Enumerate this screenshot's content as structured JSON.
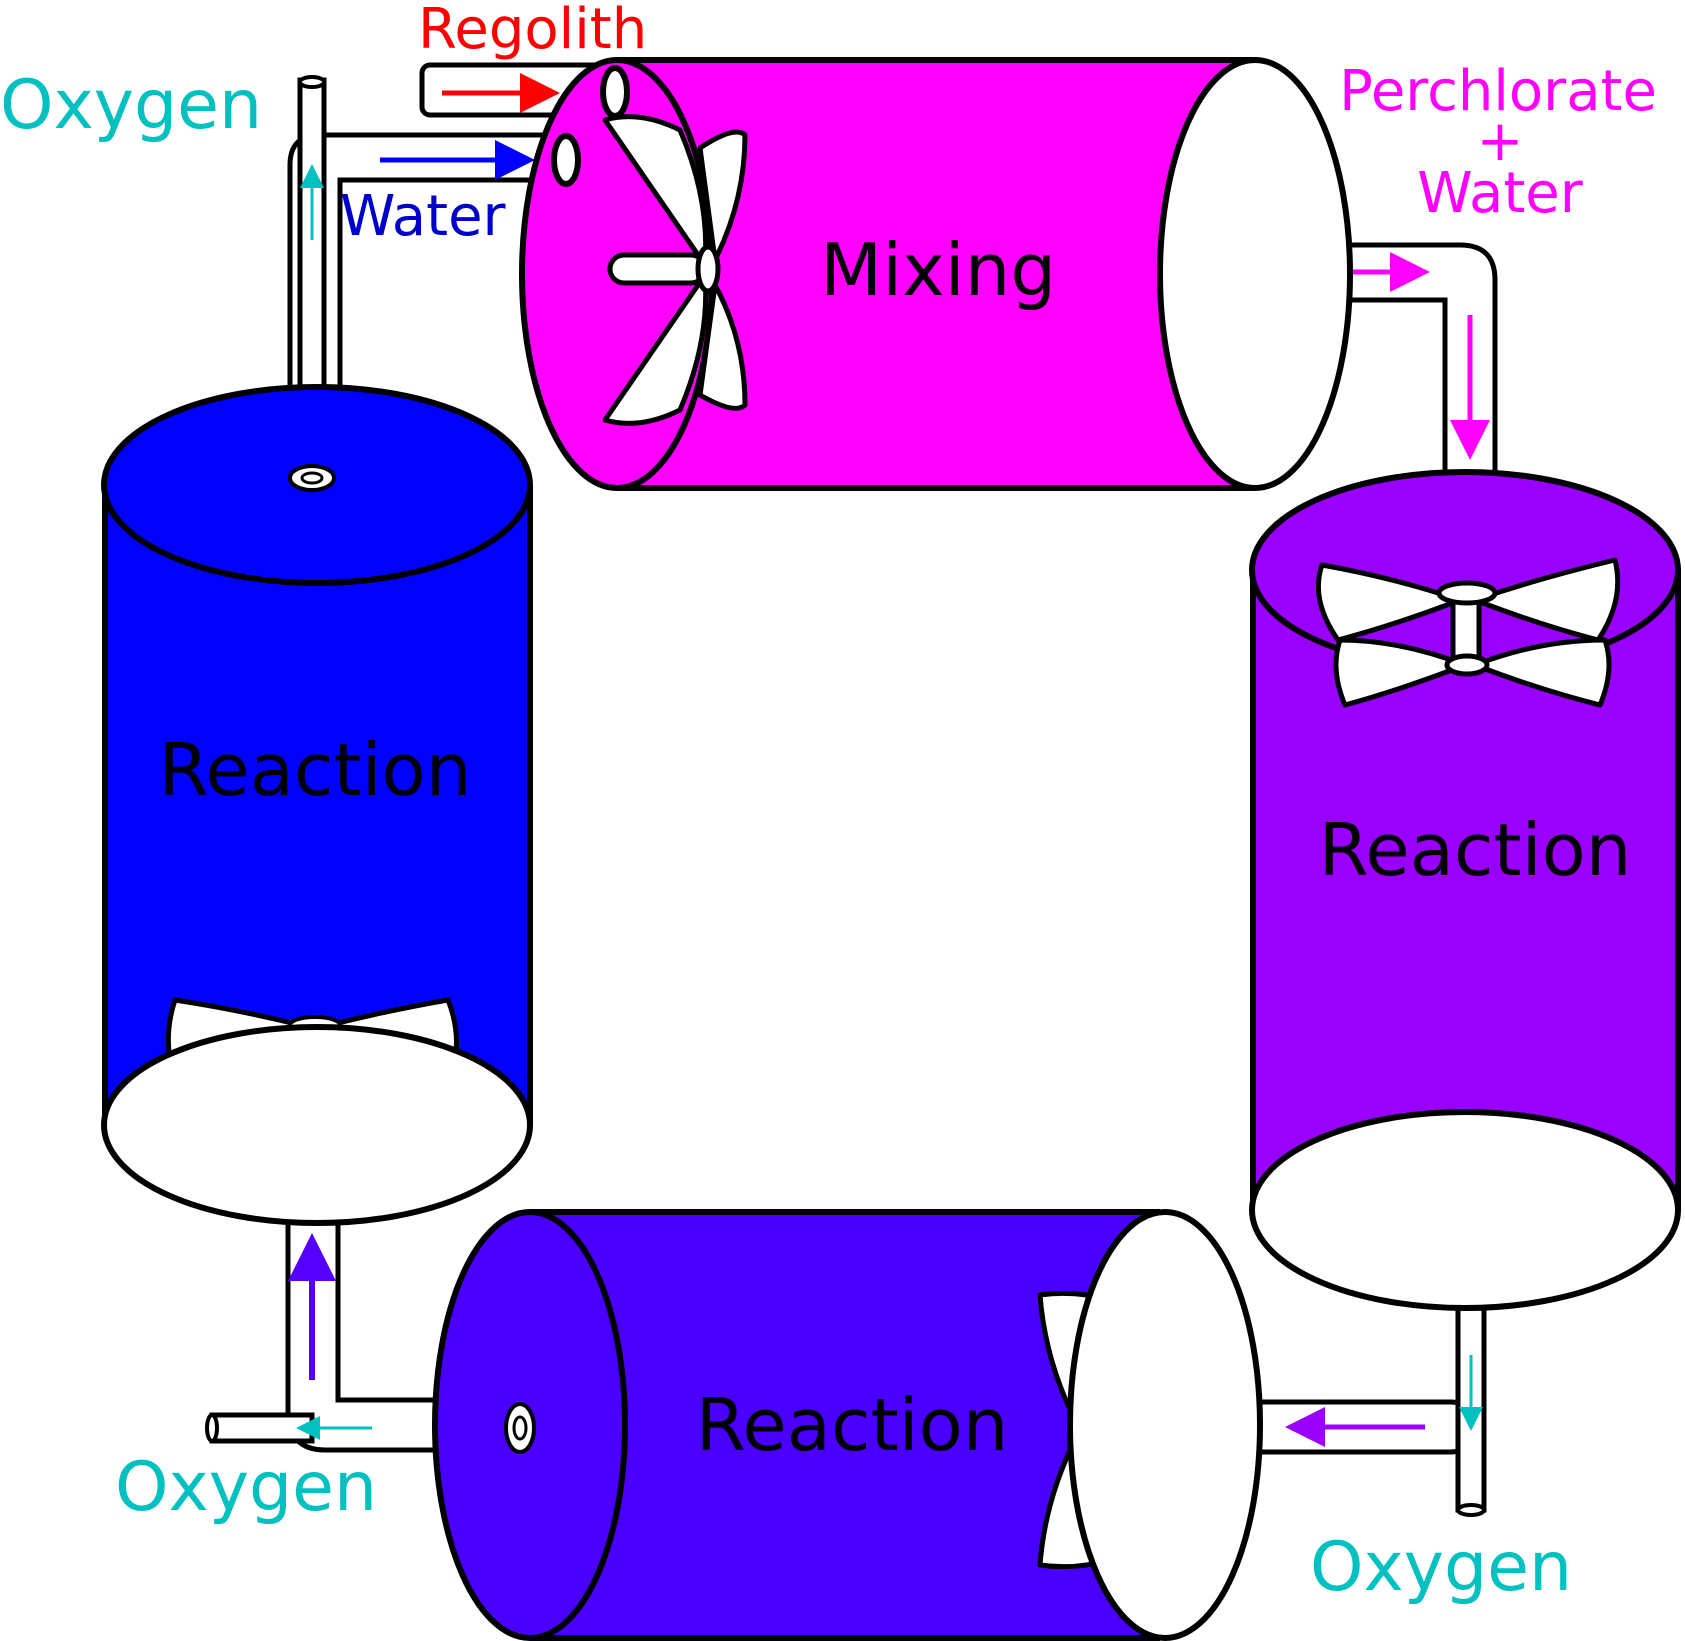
{
  "labels": {
    "regolith": "Regolith",
    "water_in": "Water",
    "oxygen_top_left": "Oxygen",
    "perchlorate": "Perchlorate",
    "plus": "+",
    "water_out": "Water",
    "oxygen_bottom_left": "Oxygen",
    "oxygen_bottom_right": "Oxygen"
  },
  "tanks": {
    "mixing": "Mixing",
    "reaction_left": "Reaction",
    "reaction_right": "Reaction",
    "reaction_bottom": "Reaction"
  },
  "colors": {
    "mixing": "#ff00ff",
    "reaction_left": "#0000ff",
    "reaction_right": "#9900ff",
    "reaction_bottom": "#4a00ff",
    "regolith": "#ff0000",
    "water": "#0000cc",
    "oxygen": "#00c0c0",
    "perchlorate": "#ff00ff"
  }
}
